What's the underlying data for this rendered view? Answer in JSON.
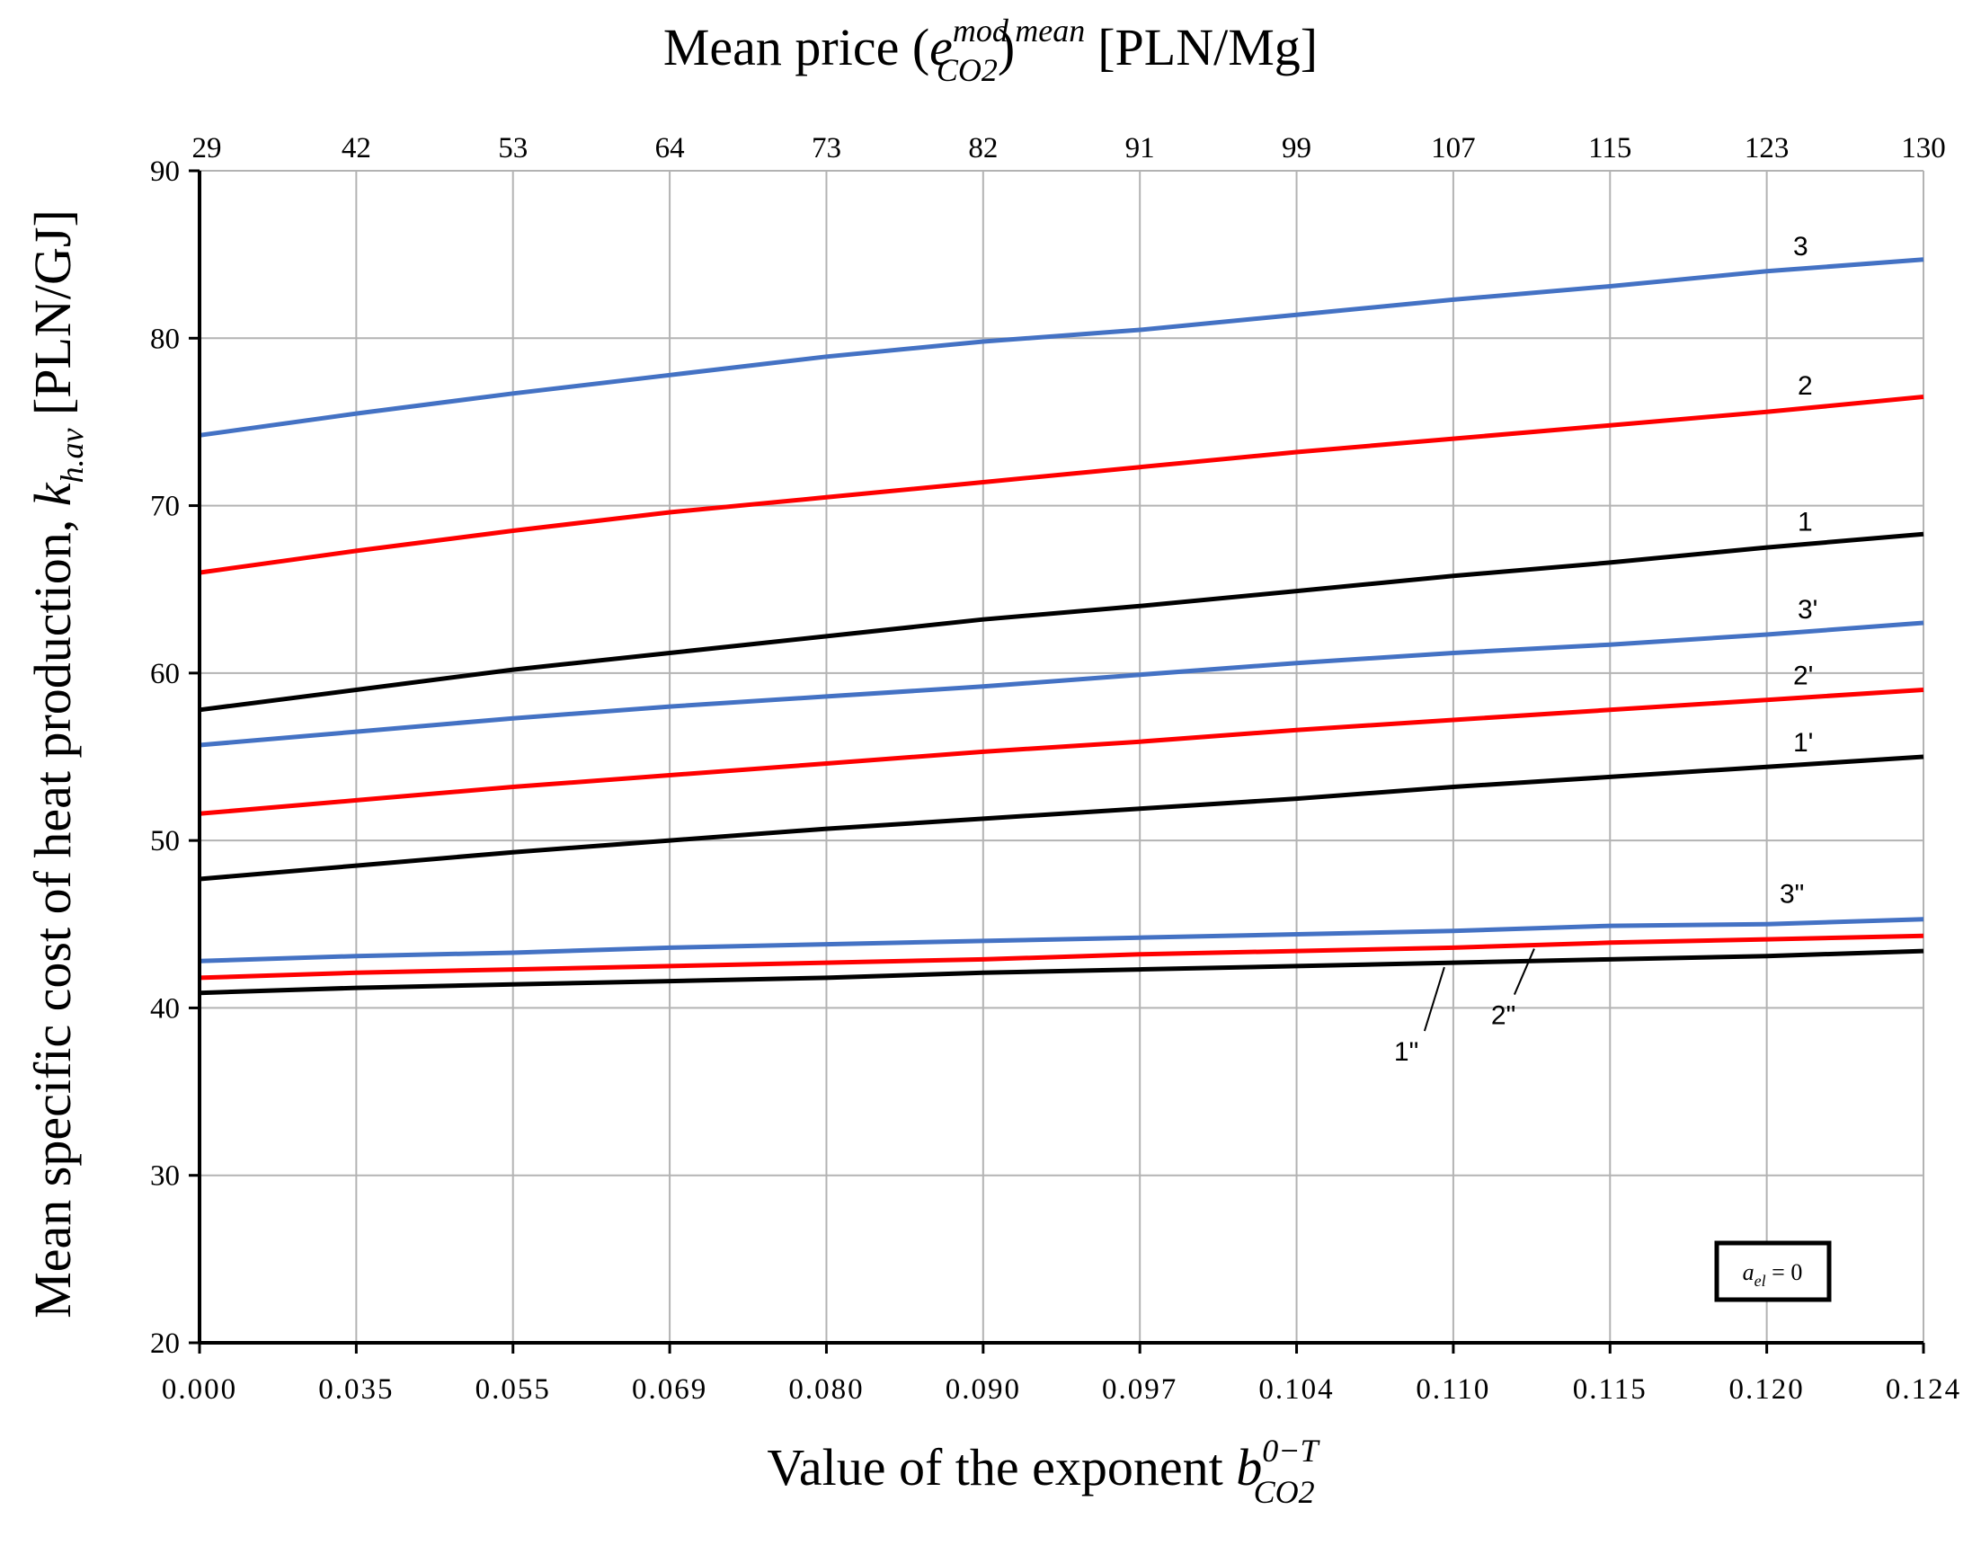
{
  "chart_data": {
    "type": "line",
    "title": "",
    "top_axis": {
      "label_prefix": "Mean price (",
      "label_var": "e",
      "label_sub": "CO2",
      "label_sup": "mod",
      "label_close": ")",
      "label_sup2": "mean",
      "label_unit": "[PLN/Mg]",
      "ticks": [
        "29",
        "42",
        "53",
        "64",
        "73",
        "82",
        "91",
        "99",
        "107",
        "115",
        "123",
        "130"
      ]
    },
    "x_axis": {
      "label_text": "Value of the exponent ",
      "label_var": "b",
      "label_sub": "CO2",
      "label_sup": "0−T",
      "ticks": [
        "0.000",
        "0.035",
        "0.055",
        "0.069",
        "0.080",
        "0.090",
        "0.097",
        "0.104",
        "0.110",
        "0.115",
        "0.120",
        "0.124"
      ]
    },
    "y_axis": {
      "label_text": "Mean specific cost of heat production, ",
      "label_var": "k",
      "label_sub": "h.av",
      "label_unit": " [PLN/GJ]",
      "ylim": [
        20,
        90
      ],
      "ticks": [
        "20",
        "30",
        "40",
        "50",
        "60",
        "70",
        "80",
        "90"
      ]
    },
    "grid": true,
    "annotation": {
      "var": "a",
      "sub": "el",
      "rest": " = 0",
      "position": "bottom-right"
    },
    "series": [
      {
        "name": "3",
        "color": "#4472c4",
        "values": [
          74.2,
          75.5,
          76.7,
          77.8,
          78.9,
          79.8,
          80.5,
          81.4,
          82.3,
          83.1,
          84.0,
          84.7
        ]
      },
      {
        "name": "2",
        "color": "#ff0000",
        "values": [
          66.0,
          67.3,
          68.5,
          69.6,
          70.5,
          71.4,
          72.3,
          73.2,
          74.0,
          74.8,
          75.6,
          76.5
        ]
      },
      {
        "name": "1",
        "color": "#000000",
        "values": [
          57.8,
          59.0,
          60.2,
          61.2,
          62.2,
          63.2,
          64.0,
          64.9,
          65.8,
          66.6,
          67.5,
          68.3
        ]
      },
      {
        "name": "3'",
        "color": "#4472c4",
        "values": [
          55.7,
          56.5,
          57.3,
          58.0,
          58.6,
          59.2,
          59.9,
          60.6,
          61.2,
          61.7,
          62.3,
          63.0
        ]
      },
      {
        "name": "2'",
        "color": "#ff0000",
        "values": [
          51.6,
          52.4,
          53.2,
          53.9,
          54.6,
          55.3,
          55.9,
          56.6,
          57.2,
          57.8,
          58.4,
          59.0
        ]
      },
      {
        "name": "1'",
        "color": "#000000",
        "values": [
          47.7,
          48.5,
          49.3,
          50.0,
          50.7,
          51.3,
          51.9,
          52.5,
          53.2,
          53.8,
          54.4,
          55.0
        ]
      },
      {
        "name": "3\"",
        "color": "#4472c4",
        "values": [
          42.8,
          43.1,
          43.3,
          43.6,
          43.8,
          44.0,
          44.2,
          44.4,
          44.6,
          44.9,
          45.0,
          45.3
        ]
      },
      {
        "name": "2\"",
        "color": "#ff0000",
        "values": [
          41.8,
          42.1,
          42.3,
          42.5,
          42.7,
          42.9,
          43.2,
          43.4,
          43.6,
          43.9,
          44.1,
          44.3
        ]
      },
      {
        "name": "1\"",
        "color": "#000000",
        "values": [
          40.9,
          41.2,
          41.4,
          41.6,
          41.8,
          42.1,
          42.3,
          42.5,
          42.7,
          42.9,
          43.1,
          43.4
        ]
      }
    ]
  }
}
